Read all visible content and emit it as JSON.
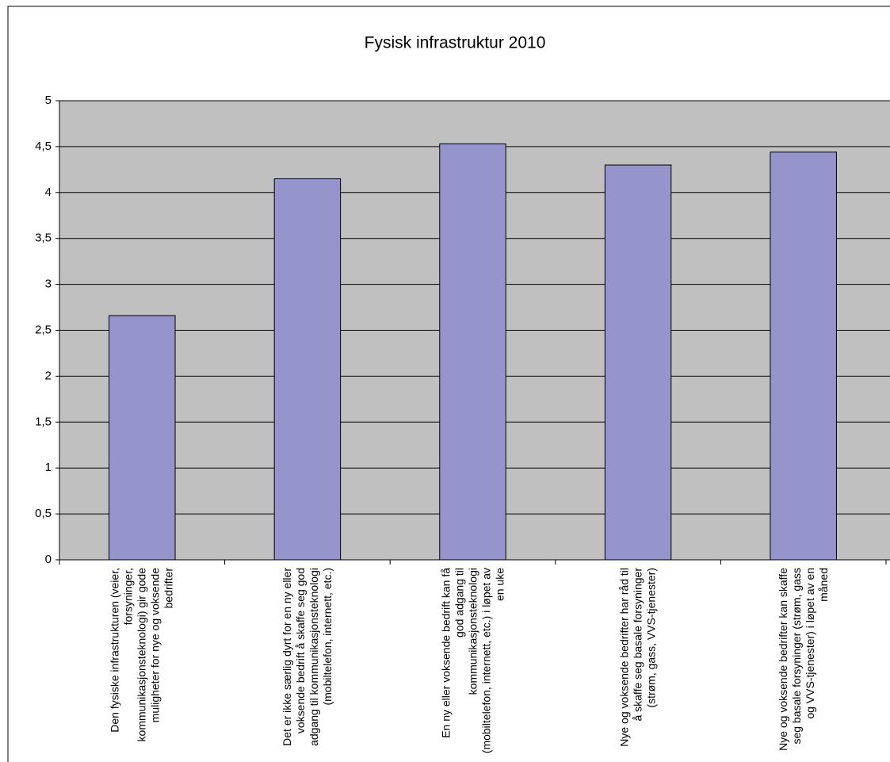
{
  "chart_data": {
    "type": "bar",
    "title": "Fysisk infrastruktur 2010",
    "categories": [
      "Den fysiske infrastrukturen (veier, forsyninger, kommunikasjonsteknologi) gir gode muligheter for nye og voksende bedrifter",
      "Det er ikke særlig dyrt for en ny eller voksende bedrift å skaffe seg god adgang til kommunikasjonsteknologi (mobiltelefon, internett, etc.)",
      "En ny eller voksende bedrift kan få god adgang til kommunikasjonsteknologi (mobiltelefon, internett, etc.) i løpet av en uke",
      "Nye og voksende bedrifter har råd til å skaffe seg basale forsyninger (strøm, gass, VVS-tjenester)",
      "Nye og voksende bedrifter kan skaffe seg basale forsyninger (strøm, gass og VVS-tjenester) i løpet av en måned"
    ],
    "values": [
      2.66,
      4.15,
      4.53,
      4.3,
      4.44
    ],
    "color": "#9595cc",
    "ylim": [
      0,
      5
    ],
    "yticks": [
      0,
      {
        "value": 0.5,
        "label": "0,5"
      },
      1,
      {
        "value": 1.5,
        "label": "1,5"
      },
      2,
      {
        "value": 2.5,
        "label": "2,5"
      },
      3,
      {
        "value": 3.5,
        "label": "3,5"
      },
      4,
      {
        "value": 4.5,
        "label": "4,5"
      },
      5
    ],
    "grid": true
  }
}
